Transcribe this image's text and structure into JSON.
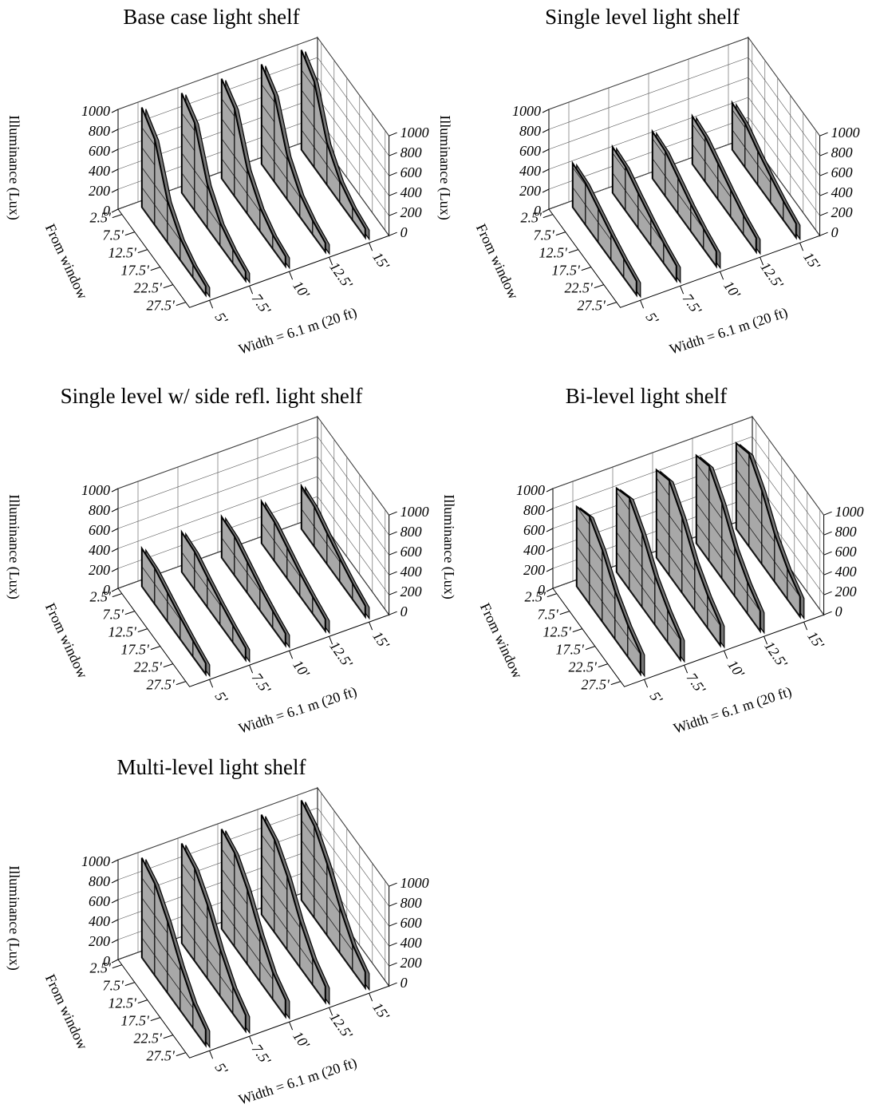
{
  "chart_data": [
    {
      "type": "ribbon3d",
      "title": "Base case light shelf",
      "ylabel": "Illuminance (Lux)",
      "depth_label": "From window",
      "xlabel": "Width = 6.1 m (20 ft)",
      "color": "#a8a8a8",
      "depth_categories": [
        "2.5'",
        "7.5'",
        "12.5'",
        "17.5'",
        "22.5'",
        "27.5'"
      ],
      "ylim": [
        0,
        1000
      ],
      "yticks": [
        0,
        200,
        400,
        600,
        800,
        1000
      ],
      "grid": true,
      "series": [
        {
          "name": "5'",
          "values": [
            1000,
            860,
            420,
            220,
            130,
            90
          ]
        },
        {
          "name": "7.5'",
          "values": [
            1000,
            880,
            440,
            230,
            140,
            90
          ]
        },
        {
          "name": "10'",
          "values": [
            1000,
            880,
            450,
            240,
            140,
            100
          ]
        },
        {
          "name": "12.5'",
          "values": [
            1000,
            870,
            440,
            230,
            140,
            90
          ]
        },
        {
          "name": "15'",
          "values": [
            1000,
            860,
            420,
            220,
            130,
            90
          ]
        }
      ]
    },
    {
      "type": "ribbon3d",
      "title": "Single level light shelf",
      "ylabel": "Illuminance (Lux)",
      "depth_label": "From window",
      "xlabel": "Width = 6.1 m (20 ft)",
      "color": "#a8a8a8",
      "depth_categories": [
        "2.5'",
        "7.5'",
        "12.5'",
        "17.5'",
        "22.5'",
        "27.5'"
      ],
      "ylim": [
        0,
        1000
      ],
      "yticks": [
        0,
        200,
        400,
        600,
        800,
        1000
      ],
      "grid": true,
      "series": [
        {
          "name": "5'",
          "values": [
            440,
            420,
            340,
            260,
            190,
            140
          ]
        },
        {
          "name": "7.5'",
          "values": [
            460,
            440,
            350,
            270,
            200,
            150
          ]
        },
        {
          "name": "10'",
          "values": [
            470,
            450,
            360,
            270,
            200,
            150
          ]
        },
        {
          "name": "12.5'",
          "values": [
            480,
            450,
            360,
            270,
            190,
            140
          ]
        },
        {
          "name": "15'",
          "values": [
            470,
            440,
            340,
            260,
            190,
            140
          ]
        }
      ]
    },
    {
      "type": "ribbon3d",
      "title": "Single level w/ side refl. light shelf",
      "ylabel": "Illuminance (Lux)",
      "depth_label": "From window",
      "xlabel": "Width = 6.1 m (20 ft)",
      "color": "#a8a8a8",
      "depth_categories": [
        "2.5'",
        "7.5'",
        "12.5'",
        "17.5'",
        "22.5'",
        "27.5'"
      ],
      "ylim": [
        0,
        1000
      ],
      "yticks": [
        0,
        200,
        400,
        600,
        800,
        1000
      ],
      "grid": true,
      "series": [
        {
          "name": "5'",
          "values": [
            380,
            360,
            290,
            220,
            160,
            110
          ]
        },
        {
          "name": "7.5'",
          "values": [
            400,
            380,
            300,
            230,
            170,
            120
          ]
        },
        {
          "name": "10'",
          "values": [
            410,
            390,
            310,
            230,
            170,
            120
          ]
        },
        {
          "name": "12.5'",
          "values": [
            420,
            390,
            310,
            230,
            170,
            120
          ]
        },
        {
          "name": "15'",
          "values": [
            430,
            400,
            310,
            230,
            160,
            110
          ]
        }
      ]
    },
    {
      "type": "ribbon3d",
      "title": "Bi-level light shelf",
      "ylabel": "Illuminance (Lux)",
      "depth_label": "From window",
      "xlabel": "Width = 6.1 m (20 ft)",
      "color": "#a8a8a8",
      "depth_categories": [
        "2.5'",
        "7.5'",
        "12.5'",
        "17.5'",
        "22.5'",
        "27.5'"
      ],
      "ylim": [
        0,
        1000
      ],
      "yticks": [
        0,
        200,
        400,
        600,
        800,
        1000
      ],
      "grid": true,
      "series": [
        {
          "name": "5'",
          "values": [
            800,
            880,
            720,
            480,
            320,
            210
          ]
        },
        {
          "name": "7.5'",
          "values": [
            840,
            920,
            740,
            490,
            330,
            210
          ]
        },
        {
          "name": "10'",
          "values": [
            880,
            950,
            760,
            500,
            330,
            210
          ]
        },
        {
          "name": "12.5'",
          "values": [
            880,
            950,
            760,
            490,
            320,
            200
          ]
        },
        {
          "name": "15'",
          "values": [
            860,
            930,
            740,
            480,
            310,
            200
          ]
        }
      ]
    },
    {
      "type": "ribbon3d",
      "title": "Multi-level light shelf",
      "ylabel": "Illuminance (Lux)",
      "depth_label": "From window",
      "xlabel": "Width = 6.1 m (20 ft)",
      "color": "#a8a8a8",
      "depth_categories": [
        "2.5'",
        "7.5'",
        "12.5'",
        "17.5'",
        "22.5'",
        "27.5'"
      ],
      "ylim": [
        0,
        1000
      ],
      "yticks": [
        0,
        200,
        400,
        600,
        800,
        1000
      ],
      "grid": true,
      "series": [
        {
          "name": "5'",
          "values": [
            1000,
            920,
            720,
            460,
            260,
            160
          ]
        },
        {
          "name": "7.5'",
          "values": [
            1000,
            930,
            740,
            470,
            270,
            160
          ]
        },
        {
          "name": "10'",
          "values": [
            1000,
            940,
            750,
            480,
            270,
            170
          ]
        },
        {
          "name": "12.5'",
          "values": [
            1000,
            930,
            740,
            470,
            270,
            160
          ]
        },
        {
          "name": "15'",
          "values": [
            1000,
            920,
            720,
            460,
            260,
            160
          ]
        }
      ]
    }
  ]
}
